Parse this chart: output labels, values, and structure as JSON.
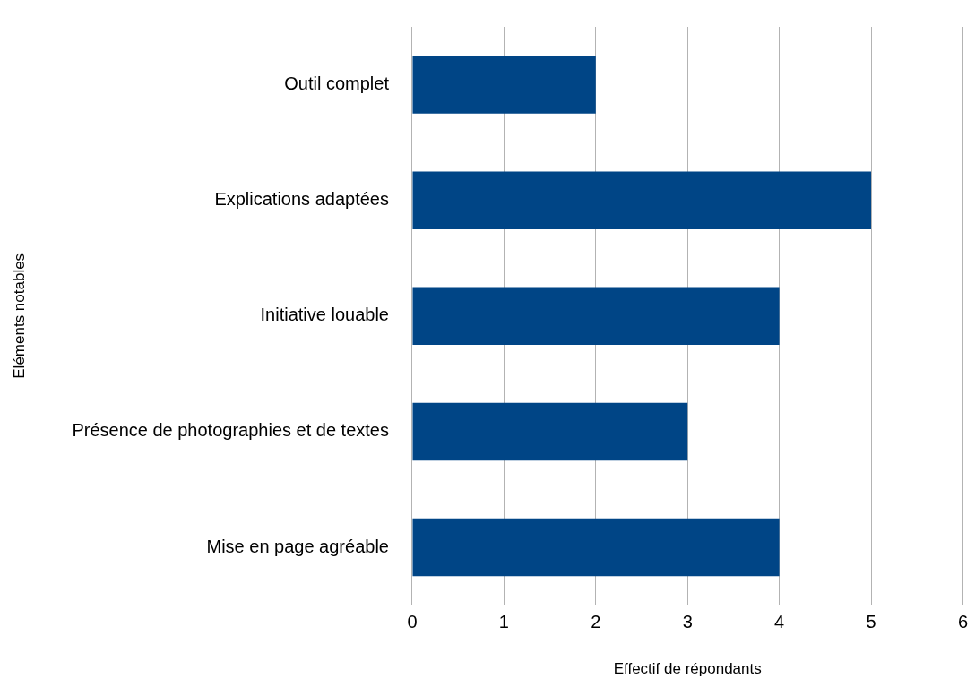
{
  "chart_data": {
    "type": "bar",
    "orientation": "horizontal",
    "xlabel": "Effectif de répondants",
    "ylabel": "Eléments notables",
    "categories": [
      "Outil complet",
      "Explications adaptées",
      "Initiative louable",
      "Présence de photographies et de textes",
      "Mise en page agréable"
    ],
    "values": [
      2,
      5,
      4,
      3,
      4
    ],
    "color": "#004586",
    "xlim": [
      0,
      6
    ],
    "xticks": [
      0,
      1,
      2,
      3,
      4,
      5,
      6
    ],
    "grid": "x"
  }
}
